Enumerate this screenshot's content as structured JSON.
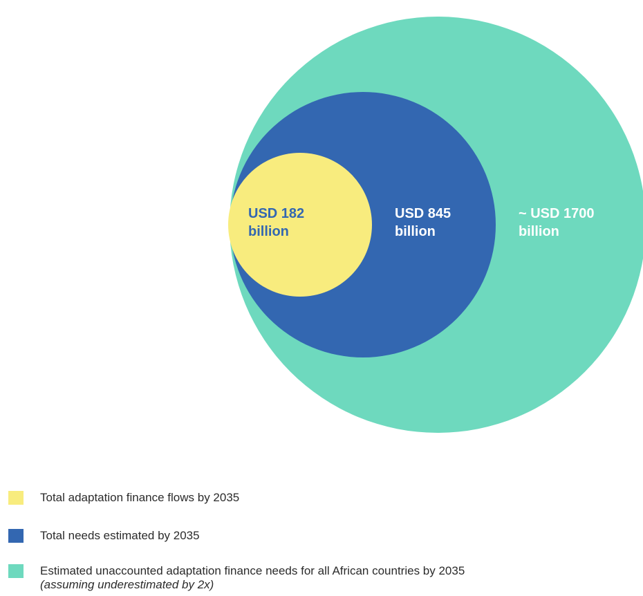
{
  "chart_data": {
    "type": "bubble",
    "series": [
      {
        "label_line1": "~ USD 1700",
        "label_line2": "billion",
        "value": 1700,
        "color": "#6ed9be",
        "label_color": "#ffffff"
      },
      {
        "label_line1": "USD 845",
        "label_line2": "billion",
        "value": 845,
        "color": "#3367b1",
        "label_color": "#ffffff"
      },
      {
        "label_line1": "USD 182",
        "label_line2": "billion",
        "value": 182,
        "color": "#f8ec7e",
        "label_color": "#3367b1"
      }
    ],
    "legend_position": "bottom-left"
  },
  "legend": {
    "items": [
      {
        "text": "Total adaptation finance flows by 2035",
        "color": "#f8ec7e"
      },
      {
        "text": "Total needs estimated by 2035",
        "color": "#3367b1"
      },
      {
        "text": "Estimated unaccounted adaptation finance needs for all African countries by 2035",
        "note": "(assuming underestimated by 2x)",
        "color": "#6ed9be"
      }
    ]
  }
}
